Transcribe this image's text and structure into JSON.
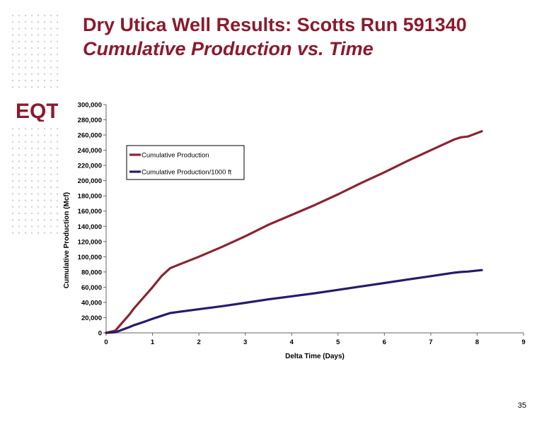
{
  "slide": {
    "title_line1": "Dry Utica Well Results: Scotts Run 591340",
    "title_line2": "Cumulative Production vs. Time",
    "page_number": "35",
    "logo_text": "EQT",
    "colors": {
      "title": "#8b1a2e",
      "logo": "#8b1a2e",
      "dots": "#d9cccc"
    }
  },
  "chart_data": {
    "type": "line",
    "title": "",
    "xlabel": "Delta Time (Days)",
    "ylabel": "Cumulative Production (Mcf)",
    "xlim": [
      0,
      9
    ],
    "ylim": [
      0,
      300000
    ],
    "x_ticks": [
      0,
      1,
      2,
      3,
      4,
      5,
      6,
      7,
      8,
      9
    ],
    "y_ticks": [
      0,
      20000,
      40000,
      60000,
      80000,
      100000,
      120000,
      140000,
      160000,
      180000,
      200000,
      220000,
      240000,
      260000,
      280000,
      300000
    ],
    "y_tick_labels": [
      "0",
      "20,000",
      "40,000",
      "60,000",
      "80,000",
      "100,000",
      "120,000",
      "140,000",
      "160,000",
      "180,000",
      "200,000",
      "220,000",
      "240,000",
      "260,000",
      "280,000",
      "300,000"
    ],
    "grid": false,
    "legend_position": "top-left inside plot",
    "series": [
      {
        "name": "Cumulative Production",
        "color": "#8b2432",
        "x": [
          0,
          0.2,
          0.3,
          0.5,
          0.6,
          0.8,
          1.0,
          1.2,
          1.38,
          1.5,
          2.0,
          2.5,
          3.0,
          3.5,
          4.0,
          4.5,
          5.0,
          5.5,
          6.0,
          6.5,
          7.0,
          7.5,
          7.65,
          7.8,
          8.1
        ],
        "y": [
          0,
          3000,
          10000,
          24000,
          32000,
          46000,
          60000,
          75000,
          85000,
          88000,
          100000,
          113000,
          127000,
          142000,
          155000,
          168000,
          182000,
          197000,
          211000,
          226000,
          240000,
          254000,
          257000,
          258000,
          265000
        ]
      },
      {
        "name": "Cumulative Production/1000 ft",
        "color": "#2a1a6a",
        "x": [
          0,
          0.2,
          0.3,
          0.5,
          0.6,
          0.8,
          1.0,
          1.2,
          1.38,
          1.5,
          2.0,
          2.5,
          3.0,
          3.5,
          4.0,
          4.5,
          5.0,
          5.5,
          6.0,
          6.5,
          7.0,
          7.5,
          7.65,
          7.8,
          8.1
        ],
        "y": [
          0,
          800,
          3000,
          7500,
          10000,
          14000,
          18500,
          22500,
          26000,
          27000,
          31000,
          35000,
          39500,
          44000,
          48000,
          52000,
          56500,
          61000,
          65500,
          70000,
          74500,
          79000,
          80000,
          80500,
          82500
        ]
      }
    ]
  }
}
